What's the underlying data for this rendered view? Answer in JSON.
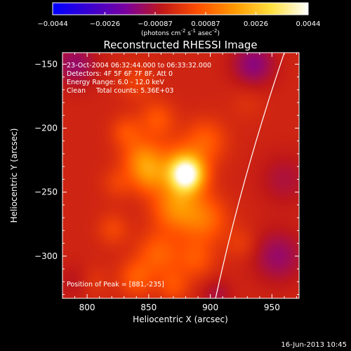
{
  "chart_data": {
    "type": "heatmap",
    "title": "Reconstructed RHESSI Image",
    "colorbar": {
      "ticks": [
        "-0.0044",
        "-0.0026",
        "-0.00087",
        "0.00087",
        "0.0026",
        "0.0044"
      ],
      "range": [
        -0.0044,
        0.0044
      ],
      "unit_prefix": "(photons cm",
      "unit_exp1": "-2",
      "unit_mid": " s",
      "unit_exp2": "-1",
      "unit_mid2": " asec",
      "unit_exp3": "-2",
      "unit_suffix": ")",
      "colormap": [
        "#0000ff",
        "#3a00d0",
        "#7a00a0",
        "#c01818",
        "#ff5000",
        "#ff9a00",
        "#ffe040",
        "#ffffff"
      ]
    },
    "info_lines": [
      "23-Oct-2004 06:32:44.000 to 06:33:32.000",
      "Detectors: 4F 5F 6F 7F 8F, Att 0",
      "Energy Range: 6.0 - 12.0 keV",
      "Clean     Total counts: 5.36E+03"
    ],
    "peak_label": "Position of Peak = [881,-235]",
    "xlabel": "Heliocentric X (arcsec)",
    "ylabel": "Heliocentric Y (arcsec)",
    "xlim": [
      780,
      972
    ],
    "ylim": [
      -333,
      -141
    ],
    "xticks": [
      800,
      850,
      900,
      950
    ],
    "yticks": [
      -150,
      -200,
      -250,
      -300
    ],
    "xtick_labels": [
      "800",
      "850",
      "900",
      "950"
    ],
    "ytick_labels": [
      "−150",
      "−200",
      "−250",
      "−300"
    ],
    "peak": {
      "x": 881,
      "y": -235
    },
    "sources": [
      {
        "x": 881,
        "y": -236,
        "a": 0.0044,
        "s": 10
      },
      {
        "x": 872,
        "y": -230,
        "a": 0.0012,
        "s": 14
      },
      {
        "x": 872,
        "y": -262,
        "a": 0.0018,
        "s": 13
      },
      {
        "x": 895,
        "y": -271,
        "a": 0.0014,
        "s": 13
      },
      {
        "x": 845,
        "y": -224,
        "a": 0.0016,
        "s": 11
      },
      {
        "x": 850,
        "y": -238,
        "a": 0.0012,
        "s": 10
      },
      {
        "x": 857,
        "y": -193,
        "a": 0.001,
        "s": 10
      },
      {
        "x": 896,
        "y": -210,
        "a": 0.0011,
        "s": 12
      },
      {
        "x": 832,
        "y": -203,
        "a": 0.0009,
        "s": 9
      },
      {
        "x": 858,
        "y": -298,
        "a": 0.0012,
        "s": 12
      },
      {
        "x": 840,
        "y": -317,
        "a": 0.0011,
        "s": 10
      },
      {
        "x": 888,
        "y": -302,
        "a": 0.001,
        "s": 11
      },
      {
        "x": 821,
        "y": -279,
        "a": 0.0007,
        "s": 9
      },
      {
        "x": 825,
        "y": -243,
        "a": 0.0006,
        "s": 9
      },
      {
        "x": 870,
        "y": -323,
        "a": 0.0009,
        "s": 9
      },
      {
        "x": 840,
        "y": -164,
        "a": 0.0006,
        "s": 10
      },
      {
        "x": 925,
        "y": -290,
        "a": 0.0005,
        "s": 9
      },
      {
        "x": 805,
        "y": -320,
        "a": 0.0004,
        "s": 9
      },
      {
        "x": 930,
        "y": -180,
        "a": 0.0003,
        "s": 10
      },
      {
        "x": 955,
        "y": -300,
        "a": -0.001,
        "s": 14
      },
      {
        "x": 935,
        "y": -150,
        "a": -0.0012,
        "s": 12
      },
      {
        "x": 790,
        "y": -150,
        "a": -0.001,
        "s": 12
      },
      {
        "x": 790,
        "y": -320,
        "a": -0.0004,
        "s": 10
      },
      {
        "x": 960,
        "y": -240,
        "a": -0.0006,
        "s": 14
      },
      {
        "x": 905,
        "y": -330,
        "a": -0.0006,
        "s": 9
      }
    ],
    "limb": {
      "x_at_top": 962,
      "x_at_bottom": 903,
      "curvature": 0.6
    }
  },
  "timestamp": "16-Jun-2013 10:45"
}
